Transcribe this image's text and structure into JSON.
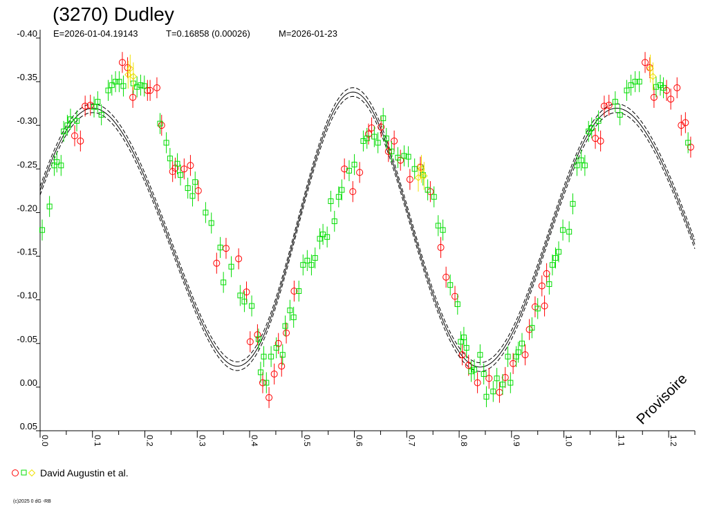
{
  "chart_data": {
    "type": "scatter",
    "title": "(3270) Dudley",
    "subtitle_parts": [
      "E=2026-01-04.19143",
      "T=0.16858 (0.00026)",
      "M=2026-01-23"
    ],
    "xlim": [
      0.0,
      1.25
    ],
    "ylim": [
      -0.4,
      0.05
    ],
    "x_ticks": [
      "0.0",
      "0.1",
      "0.2",
      "0.3",
      "0.4",
      "0.5",
      "0.6",
      "0.7",
      "0.8",
      "0.9",
      "1.0",
      "1.1",
      "1.2"
    ],
    "y_ticks": [
      "-0.40",
      "-0.35",
      "-0.30",
      "-0.25",
      "-0.20",
      "-0.15",
      "-0.10",
      "-0.05",
      "0.00",
      "0.05"
    ],
    "legend": {
      "label": "David Augustin et al.",
      "placement": "bottom-left"
    },
    "watermark": "Provisoire",
    "copyright": "(c)2025 0 dG -RB",
    "fourier_model": {
      "mean": -0.175,
      "cos1": -0.005,
      "sin1": -0.01,
      "cos2": -0.04,
      "sin2": -0.145,
      "cos3": -0.005,
      "sin3": 0.0185,
      "cos4": 0.0,
      "sin4": -0.006,
      "band": 0.005
    },
    "series": [
      {
        "marker": "circle",
        "color": "#ff0000",
        "points": [
          [
            0.066,
            -0.288,
            0.012
          ],
          [
            0.077,
            -0.282,
            0.012
          ],
          [
            0.086,
            -0.322,
            0.012
          ],
          [
            0.096,
            -0.323,
            0.012
          ],
          [
            0.157,
            -0.372,
            0.012
          ],
          [
            0.167,
            -0.366,
            0.012
          ],
          [
            0.177,
            -0.332,
            0.012
          ],
          [
            0.223,
            -0.343,
            0.012
          ],
          [
            0.21,
            -0.34,
            0.012
          ],
          [
            0.205,
            -0.34,
            0.012
          ],
          [
            0.232,
            -0.3,
            0.012
          ],
          [
            0.253,
            -0.247,
            0.012
          ],
          [
            0.258,
            -0.251,
            0.012
          ],
          [
            0.275,
            -0.25,
            0.012
          ],
          [
            0.287,
            -0.254,
            0.012
          ],
          [
            0.302,
            -0.225,
            0.012
          ],
          [
            0.337,
            -0.142,
            0.012
          ],
          [
            0.355,
            -0.159,
            0.012
          ],
          [
            0.379,
            -0.147,
            0.012
          ],
          [
            0.394,
            -0.109,
            0.012
          ],
          [
            0.401,
            -0.052,
            0.012
          ],
          [
            0.415,
            -0.06,
            0.012
          ],
          [
            0.425,
            -0.005,
            0.012
          ],
          [
            0.437,
            0.012,
            0.012
          ],
          [
            0.447,
            -0.015,
            0.012
          ],
          [
            0.455,
            -0.05,
            0.012
          ],
          [
            0.461,
            -0.024,
            0.012
          ],
          [
            0.47,
            -0.062,
            0.012
          ],
          [
            0.485,
            -0.11,
            0.012
          ],
          [
            0.581,
            -0.25,
            0.012
          ],
          [
            0.597,
            -0.224,
            0.012
          ],
          [
            0.61,
            -0.246,
            0.012
          ],
          [
            0.627,
            -0.29,
            0.012
          ],
          [
            0.633,
            -0.297,
            0.012
          ],
          [
            0.651,
            -0.298,
            0.012
          ],
          [
            0.665,
            -0.27,
            0.012
          ],
          [
            0.676,
            -0.282,
            0.012
          ],
          [
            0.688,
            -0.26,
            0.012
          ],
          [
            0.706,
            -0.238,
            0.012
          ],
          [
            0.726,
            -0.252,
            0.012
          ],
          [
            0.745,
            -0.224,
            0.012
          ],
          [
            0.765,
            -0.16,
            0.012
          ],
          [
            0.775,
            -0.126,
            0.012
          ],
          [
            0.792,
            -0.104,
            0.012
          ],
          [
            0.806,
            -0.037,
            0.012
          ],
          [
            0.818,
            -0.025,
            0.012
          ],
          [
            0.835,
            -0.005,
            0.012
          ],
          [
            0.857,
            -0.01,
            0.012
          ],
          [
            0.877,
            0.006,
            0.012
          ],
          [
            0.888,
            -0.011,
            0.012
          ],
          [
            0.903,
            -0.027,
            0.012
          ],
          [
            0.926,
            -0.037,
            0.012
          ],
          [
            0.934,
            -0.066,
            0.012
          ],
          [
            0.945,
            -0.092,
            0.012
          ],
          [
            0.963,
            -0.093,
            0.012
          ],
          [
            0.958,
            -0.116,
            0.012
          ],
          [
            0.967,
            -0.13,
            0.012
          ],
          [
            1.06,
            -0.285,
            0.012
          ],
          [
            1.07,
            -0.282,
            0.012
          ],
          [
            1.077,
            -0.322,
            0.012
          ],
          [
            1.086,
            -0.323,
            0.012
          ],
          [
            1.155,
            -0.372,
            0.012
          ],
          [
            1.164,
            -0.366,
            0.012
          ],
          [
            1.172,
            -0.332,
            0.012
          ],
          [
            1.196,
            -0.34,
            0.012
          ],
          [
            1.204,
            -0.33,
            0.012
          ],
          [
            1.216,
            -0.343,
            0.012
          ],
          [
            1.224,
            -0.3,
            0.012
          ],
          [
            1.232,
            -0.303,
            0.012
          ],
          [
            1.242,
            -0.275,
            0.012
          ]
        ]
      },
      {
        "marker": "square",
        "color": "#00dd00",
        "points": [
          [
            0.004,
            -0.18,
            0.012
          ],
          [
            0.018,
            -0.207,
            0.012
          ],
          [
            0.027,
            -0.254,
            0.012
          ],
          [
            0.032,
            -0.258,
            0.012
          ],
          [
            0.04,
            -0.254,
            0.012
          ],
          [
            0.045,
            -0.293,
            0.012
          ],
          [
            0.052,
            -0.3,
            0.012
          ],
          [
            0.058,
            -0.307,
            0.012
          ],
          [
            0.07,
            -0.305,
            0.012
          ],
          [
            0.103,
            -0.321,
            0.012
          ],
          [
            0.11,
            -0.327,
            0.012
          ],
          [
            0.117,
            -0.312,
            0.012
          ],
          [
            0.13,
            -0.34,
            0.012
          ],
          [
            0.137,
            -0.346,
            0.012
          ],
          [
            0.144,
            -0.35,
            0.012
          ],
          [
            0.151,
            -0.35,
            0.012
          ],
          [
            0.159,
            -0.345,
            0.012
          ],
          [
            0.178,
            -0.348,
            0.012
          ],
          [
            0.185,
            -0.344,
            0.012
          ],
          [
            0.192,
            -0.346,
            0.012
          ],
          [
            0.199,
            -0.345,
            0.012
          ],
          [
            0.229,
            -0.302,
            0.012
          ],
          [
            0.241,
            -0.28,
            0.012
          ],
          [
            0.248,
            -0.262,
            0.012
          ],
          [
            0.262,
            -0.256,
            0.012
          ],
          [
            0.268,
            -0.243,
            0.012
          ],
          [
            0.282,
            -0.228,
            0.012
          ],
          [
            0.291,
            -0.219,
            0.012
          ],
          [
            0.296,
            -0.235,
            0.012
          ],
          [
            0.316,
            -0.2,
            0.012
          ],
          [
            0.327,
            -0.188,
            0.012
          ],
          [
            0.344,
            -0.16,
            0.012
          ],
          [
            0.35,
            -0.12,
            0.012
          ],
          [
            0.365,
            -0.138,
            0.012
          ],
          [
            0.382,
            -0.105,
            0.012
          ],
          [
            0.39,
            -0.098,
            0.012
          ],
          [
            0.404,
            -0.093,
            0.012
          ],
          [
            0.417,
            -0.055,
            0.012
          ],
          [
            0.421,
            -0.017,
            0.012
          ],
          [
            0.427,
            -0.035,
            0.012
          ],
          [
            0.432,
            -0.005,
            0.012
          ],
          [
            0.441,
            -0.035,
            0.012
          ],
          [
            0.451,
            -0.045,
            0.012
          ],
          [
            0.463,
            -0.037,
            0.012
          ],
          [
            0.468,
            -0.07,
            0.012
          ],
          [
            0.477,
            -0.088,
            0.012
          ],
          [
            0.484,
            -0.08,
            0.012
          ],
          [
            0.494,
            -0.11,
            0.012
          ],
          [
            0.502,
            -0.14,
            0.012
          ],
          [
            0.51,
            -0.145,
            0.012
          ],
          [
            0.518,
            -0.14,
            0.012
          ],
          [
            0.525,
            -0.148,
            0.012
          ],
          [
            0.534,
            -0.17,
            0.012
          ],
          [
            0.54,
            -0.175,
            0.012
          ],
          [
            0.548,
            -0.172,
            0.012
          ],
          [
            0.555,
            -0.213,
            0.012
          ],
          [
            0.562,
            -0.19,
            0.012
          ],
          [
            0.57,
            -0.218,
            0.012
          ],
          [
            0.576,
            -0.226,
            0.012
          ],
          [
            0.59,
            -0.248,
            0.012
          ],
          [
            0.6,
            -0.255,
            0.012
          ],
          [
            0.617,
            -0.282,
            0.012
          ],
          [
            0.624,
            -0.285,
            0.012
          ],
          [
            0.638,
            -0.287,
            0.012
          ],
          [
            0.645,
            -0.28,
            0.012
          ],
          [
            0.655,
            -0.308,
            0.012
          ],
          [
            0.661,
            -0.285,
            0.012
          ],
          [
            0.671,
            -0.27,
            0.012
          ],
          [
            0.683,
            -0.263,
            0.012
          ],
          [
            0.695,
            -0.265,
            0.012
          ],
          [
            0.703,
            -0.264,
            0.012
          ],
          [
            0.715,
            -0.25,
            0.012
          ],
          [
            0.731,
            -0.243,
            0.012
          ],
          [
            0.74,
            -0.226,
            0.012
          ],
          [
            0.752,
            -0.218,
            0.012
          ],
          [
            0.76,
            -0.185,
            0.012
          ],
          [
            0.769,
            -0.18,
            0.012
          ],
          [
            0.783,
            -0.117,
            0.012
          ],
          [
            0.797,
            -0.095,
            0.012
          ],
          [
            0.803,
            -0.052,
            0.012
          ],
          [
            0.809,
            -0.057,
            0.012
          ],
          [
            0.814,
            -0.045,
            0.012
          ],
          [
            0.823,
            -0.018,
            0.012
          ],
          [
            0.829,
            -0.02,
            0.012
          ],
          [
            0.84,
            -0.037,
            0.012
          ],
          [
            0.847,
            -0.015,
            0.012
          ],
          [
            0.852,
            0.011,
            0.012
          ],
          [
            0.865,
            0.005,
            0.012
          ],
          [
            0.872,
            -0.01,
            0.012
          ],
          [
            0.883,
            -0.003,
            0.012
          ],
          [
            0.893,
            -0.035,
            0.012
          ],
          [
            0.898,
            -0.005,
            0.012
          ],
          [
            0.909,
            -0.035,
            0.012
          ],
          [
            0.913,
            -0.04,
            0.012
          ],
          [
            0.92,
            -0.05,
            0.012
          ],
          [
            0.939,
            -0.068,
            0.012
          ],
          [
            0.95,
            -0.09,
            0.012
          ],
          [
            0.972,
            -0.118,
            0.012
          ],
          [
            0.978,
            -0.14,
            0.012
          ],
          [
            0.984,
            -0.148,
            0.012
          ],
          [
            0.99,
            -0.155,
            0.012
          ],
          [
            0.998,
            -0.18,
            0.012
          ],
          [
            1.01,
            -0.178,
            0.012
          ],
          [
            1.017,
            -0.21,
            0.012
          ],
          [
            1.025,
            -0.254,
            0.012
          ],
          [
            1.033,
            -0.26,
            0.012
          ],
          [
            1.04,
            -0.254,
            0.012
          ],
          [
            1.047,
            -0.293,
            0.012
          ],
          [
            1.053,
            -0.297,
            0.012
          ],
          [
            1.066,
            -0.305,
            0.012
          ],
          [
            1.098,
            -0.327,
            0.012
          ],
          [
            1.107,
            -0.312,
            0.012
          ],
          [
            1.12,
            -0.34,
            0.012
          ],
          [
            1.128,
            -0.346,
            0.012
          ],
          [
            1.136,
            -0.35,
            0.012
          ],
          [
            1.144,
            -0.35,
            0.012
          ],
          [
            1.176,
            -0.344,
            0.012
          ],
          [
            1.184,
            -0.346,
            0.012
          ],
          [
            1.19,
            -0.343,
            0.012
          ],
          [
            1.237,
            -0.28,
            0.012
          ]
        ]
      },
      {
        "marker": "diamond",
        "color": "#f0e000",
        "points": [
          [
            0.172,
            -0.365,
            0.016
          ],
          [
            0.178,
            -0.356,
            0.016
          ],
          [
            0.168,
            -0.358,
            0.016
          ],
          [
            0.722,
            -0.24,
            0.016
          ],
          [
            0.728,
            -0.25,
            0.016
          ],
          [
            0.733,
            -0.242,
            0.016
          ],
          [
            1.165,
            -0.365,
            0.016
          ],
          [
            1.17,
            -0.356,
            0.016
          ]
        ]
      }
    ]
  }
}
